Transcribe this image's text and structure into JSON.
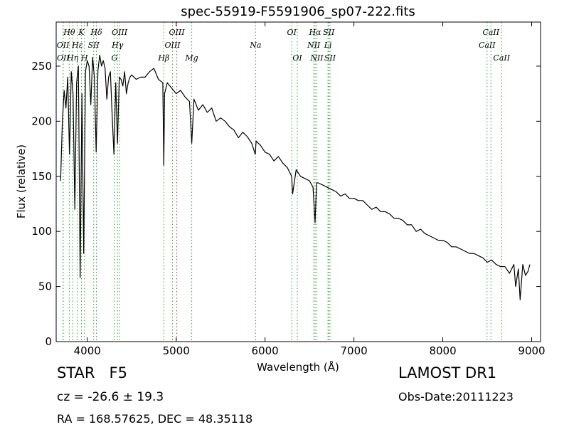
{
  "chart_data": {
    "type": "line",
    "title": "spec-55919-F5591906_sp07-222.fits",
    "xlabel": "Wavelength (Å)",
    "ylabel": "Flux (relative)",
    "xlim": [
      3650,
      9100
    ],
    "ylim": [
      0,
      290
    ],
    "xticks": [
      4000,
      5000,
      6000,
      7000,
      8000,
      9000
    ],
    "yticks": [
      0,
      50,
      100,
      150,
      200,
      250
    ],
    "grid": false,
    "series": [
      {
        "color": "#000000",
        "x": [
          3700,
          3720,
          3740,
          3760,
          3780,
          3800,
          3820,
          3840,
          3860,
          3880,
          3900,
          3920,
          3940,
          3960,
          3980,
          4000,
          4020,
          4040,
          4060,
          4080,
          4100,
          4120,
          4140,
          4160,
          4180,
          4200,
          4220,
          4240,
          4260,
          4280,
          4300,
          4320,
          4340,
          4360,
          4380,
          4400,
          4420,
          4440,
          4460,
          4480,
          4500,
          4550,
          4600,
          4650,
          4700,
          4750,
          4800,
          4850,
          4861,
          4870,
          4900,
          4950,
          5000,
          5050,
          5100,
          5150,
          5175,
          5200,
          5250,
          5300,
          5350,
          5400,
          5450,
          5500,
          5550,
          5600,
          5650,
          5700,
          5750,
          5800,
          5850,
          5890,
          5900,
          5950,
          6000,
          6050,
          6100,
          6150,
          6200,
          6250,
          6300,
          6310,
          6350,
          6400,
          6450,
          6500,
          6540,
          6563,
          6580,
          6600,
          6650,
          6700,
          6750,
          6800,
          6850,
          6900,
          6950,
          7000,
          7050,
          7100,
          7150,
          7200,
          7250,
          7300,
          7350,
          7400,
          7450,
          7500,
          7550,
          7600,
          7650,
          7700,
          7750,
          7800,
          7850,
          7900,
          7950,
          8000,
          8050,
          8100,
          8150,
          8200,
          8250,
          8300,
          8350,
          8400,
          8450,
          8500,
          8550,
          8600,
          8650,
          8700,
          8750,
          8800,
          8820,
          8850,
          8870,
          8900,
          8930,
          8960,
          8980
        ],
        "y": [
          146,
          200,
          228,
          212,
          240,
          170,
          245,
          225,
          120,
          235,
          250,
          58,
          225,
          80,
          245,
          255,
          250,
          215,
          258,
          240,
          172,
          246,
          260,
          250,
          255,
          248,
          220,
          240,
          245,
          205,
          170,
          235,
          180,
          240,
          238,
          232,
          245,
          225,
          235,
          240,
          242,
          238,
          240,
          240,
          245,
          248,
          238,
          235,
          160,
          225,
          235,
          230,
          225,
          228,
          222,
          218,
          180,
          220,
          210,
          215,
          208,
          212,
          200,
          203,
          200,
          195,
          192,
          185,
          190,
          186,
          180,
          170,
          182,
          178,
          172,
          170,
          164,
          168,
          162,
          158,
          150,
          134,
          156,
          150,
          148,
          146,
          140,
          108,
          144,
          144,
          142,
          140,
          138,
          136,
          132,
          134,
          130,
          130,
          128,
          128,
          124,
          120,
          122,
          118,
          118,
          116,
          112,
          112,
          110,
          106,
          106,
          100,
          102,
          98,
          96,
          94,
          92,
          92,
          90,
          86,
          86,
          84,
          82,
          80,
          80,
          78,
          76,
          72,
          74,
          70,
          68,
          68,
          62,
          70,
          50,
          66,
          38,
          70,
          60,
          64,
          70
        ]
      }
    ],
    "spectral_lines": [
      {
        "label": "OII",
        "x": 3727,
        "row": 1,
        "color": "#2ca02c"
      },
      {
        "label": "OII",
        "x": 3729,
        "row": 2,
        "color": "#2ca02c"
      },
      {
        "label": "Hθ",
        "x": 3797,
        "row": 0,
        "color": "#2ca02c"
      },
      {
        "label": "Hη",
        "x": 3835,
        "row": 2,
        "color": "#2ca02c"
      },
      {
        "label": "Hε",
        "x": 3889,
        "row": 1,
        "color": "#2ca02c"
      },
      {
        "label": "K",
        "x": 3934,
        "row": 0,
        "color": "#2ca02c"
      },
      {
        "label": "H",
        "x": 3968,
        "row": 2,
        "color": "#2ca02c"
      },
      {
        "label": "SII",
        "x": 4072,
        "row": 1,
        "color": "#2ca02c"
      },
      {
        "label": "Hδ",
        "x": 4102,
        "row": 0,
        "color": "#2ca02c"
      },
      {
        "label": "G",
        "x": 4305,
        "row": 2,
        "color": "#2ca02c"
      },
      {
        "label": "Hγ",
        "x": 4340,
        "row": 1,
        "color": "#2ca02c"
      },
      {
        "label": "OIII",
        "x": 4363,
        "row": 0,
        "color": "#2ca02c"
      },
      {
        "label": "Hβ",
        "x": 4861,
        "row": 2,
        "color": "#2ca02c"
      },
      {
        "label": "OIII",
        "x": 4959,
        "row": 1,
        "color": "#2ca02c"
      },
      {
        "label": "OIII",
        "x": 5007,
        "row": 0,
        "color": "#d62728"
      },
      {
        "label": "Mg",
        "x": 5175,
        "row": 2,
        "color": "#2ca02c"
      },
      {
        "label": "Na",
        "x": 5894,
        "row": 1,
        "color": "#2ca02c"
      },
      {
        "label": "OI",
        "x": 6300,
        "row": 0,
        "color": "#2ca02c"
      },
      {
        "label": "OI",
        "x": 6363,
        "row": 2,
        "color": "#2ca02c"
      },
      {
        "label": "NII",
        "x": 6548,
        "row": 1,
        "color": "#2ca02c"
      },
      {
        "label": "Hα",
        "x": 6563,
        "row": 0,
        "color": "#2ca02c"
      },
      {
        "label": "NII",
        "x": 6583,
        "row": 2,
        "color": "#2ca02c"
      },
      {
        "label": "SII",
        "x": 6717,
        "row": 0,
        "color": "#2ca02c"
      },
      {
        "label": "Li",
        "x": 6708,
        "row": 1,
        "color": "#2ca02c"
      },
      {
        "label": "SII",
        "x": 6731,
        "row": 2,
        "color": "#2ca02c"
      },
      {
        "label": "CaII",
        "x": 8498,
        "row": 1,
        "color": "#2ca02c"
      },
      {
        "label": "CaII",
        "x": 8542,
        "row": 0,
        "color": "#2ca02c"
      },
      {
        "label": "CaII",
        "x": 8662,
        "row": 2,
        "color": "#2ca02c"
      }
    ]
  },
  "info": {
    "object_class": "STAR",
    "subclass": "F5",
    "survey": "LAMOST DR1",
    "redshift": "cz = -26.6 ± 19.3",
    "obs_date": "Obs-Date:20111223",
    "radec": "RA = 168.57625, DEC = 48.35118"
  }
}
